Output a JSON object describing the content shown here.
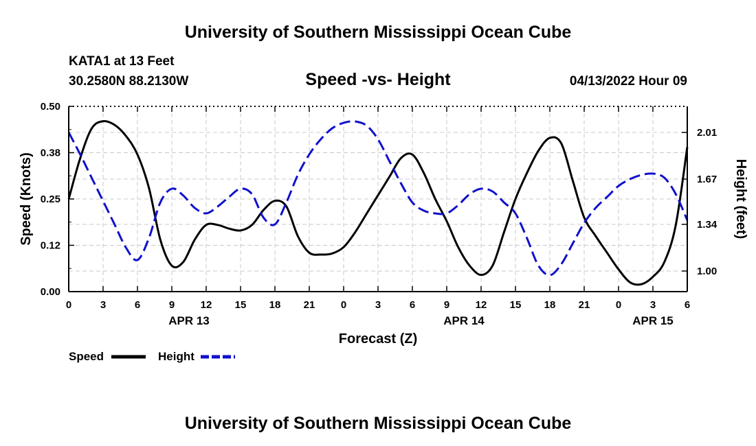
{
  "page": {
    "header_title": "University of Southern Mississippi Ocean Cube",
    "footer_title": "University of Southern Mississippi Ocean Cube"
  },
  "chart_data": {
    "type": "line",
    "title": "Speed -vs- Height",
    "station": "KATA1 at 13 Feet",
    "location": "30.2580N  88.2130W",
    "timestamp": "04/13/2022 Hour 09",
    "xlabel": "Forecast (Z)",
    "ylabel": "Speed (Knots)",
    "y2label": "Height (feet)",
    "x_range_hours": [
      0,
      54
    ],
    "x_ticks": [
      {
        "h": 0,
        "label": "0"
      },
      {
        "h": 3,
        "label": "3"
      },
      {
        "h": 6,
        "label": "6"
      },
      {
        "h": 9,
        "label": "9"
      },
      {
        "h": 12,
        "label": "12"
      },
      {
        "h": 15,
        "label": "15"
      },
      {
        "h": 18,
        "label": "18"
      },
      {
        "h": 21,
        "label": "21"
      },
      {
        "h": 24,
        "label": "0"
      },
      {
        "h": 27,
        "label": "3"
      },
      {
        "h": 30,
        "label": "6"
      },
      {
        "h": 33,
        "label": "9"
      },
      {
        "h": 36,
        "label": "12"
      },
      {
        "h": 39,
        "label": "15"
      },
      {
        "h": 42,
        "label": "18"
      },
      {
        "h": 45,
        "label": "21"
      },
      {
        "h": 48,
        "label": "0"
      },
      {
        "h": 51,
        "label": "3"
      },
      {
        "h": 54,
        "label": "6"
      }
    ],
    "date_labels": [
      {
        "h": 10.5,
        "label": "APR 13"
      },
      {
        "h": 34.5,
        "label": "APR 14"
      },
      {
        "h": 51,
        "label": "APR 15"
      }
    ],
    "ylim": [
      0,
      0.5
    ],
    "y_ticks": [
      {
        "v": 0.0,
        "label": "0.00"
      },
      {
        "v": 0.125,
        "label": "0.12"
      },
      {
        "v": 0.25,
        "label": "0.25"
      },
      {
        "v": 0.375,
        "label": "0.38"
      },
      {
        "v": 0.5,
        "label": "0.50"
      }
    ],
    "y2lim": [
      0.85,
      2.2
    ],
    "y2_ticks": [
      {
        "v": 1.0,
        "label": "1.00"
      },
      {
        "v": 1.34,
        "label": "1.34"
      },
      {
        "v": 1.67,
        "label": "1.67"
      },
      {
        "v": 2.01,
        "label": "2.01"
      }
    ],
    "series": [
      {
        "name": "Speed",
        "axis": "left",
        "color": "#000000",
        "dash": "solid",
        "x": [
          0,
          1,
          2,
          3,
          4,
          5,
          6,
          7,
          8,
          9,
          10,
          11,
          12,
          13,
          14,
          15,
          16,
          17,
          18,
          19,
          20,
          21,
          22,
          23,
          24,
          25,
          26,
          27,
          28,
          29,
          30,
          31,
          32,
          33,
          34,
          35,
          36,
          37,
          38,
          39,
          40,
          41,
          42,
          43,
          44,
          45,
          46,
          47,
          48,
          49,
          50,
          51,
          52,
          53,
          54
        ],
        "values": [
          0.25,
          0.36,
          0.44,
          0.46,
          0.45,
          0.42,
          0.37,
          0.28,
          0.14,
          0.07,
          0.08,
          0.14,
          0.18,
          0.18,
          0.17,
          0.165,
          0.18,
          0.22,
          0.245,
          0.23,
          0.15,
          0.105,
          0.1,
          0.103,
          0.12,
          0.16,
          0.21,
          0.26,
          0.31,
          0.36,
          0.37,
          0.32,
          0.25,
          0.19,
          0.12,
          0.07,
          0.045,
          0.07,
          0.16,
          0.25,
          0.32,
          0.38,
          0.415,
          0.4,
          0.3,
          0.2,
          0.15,
          0.105,
          0.06,
          0.025,
          0.02,
          0.04,
          0.08,
          0.18,
          0.39
        ]
      },
      {
        "name": "Height",
        "axis": "right",
        "color": "#1010cc",
        "dash": "dashed",
        "x": [
          0,
          1,
          2,
          3,
          4,
          5,
          6,
          7,
          8,
          9,
          10,
          11,
          12,
          13,
          14,
          15,
          16,
          17,
          18,
          19,
          20,
          21,
          22,
          23,
          24,
          25,
          26,
          27,
          28,
          29,
          30,
          31,
          32,
          33,
          34,
          35,
          36,
          37,
          38,
          39,
          40,
          41,
          42,
          43,
          44,
          45,
          46,
          47,
          48,
          49,
          50,
          51,
          52,
          53,
          54
        ],
        "values": [
          2.01,
          1.85,
          1.68,
          1.51,
          1.34,
          1.17,
          1.08,
          1.24,
          1.5,
          1.6,
          1.55,
          1.46,
          1.42,
          1.47,
          1.54,
          1.6,
          1.56,
          1.39,
          1.34,
          1.5,
          1.7,
          1.85,
          1.96,
          2.04,
          2.08,
          2.09,
          2.06,
          1.96,
          1.8,
          1.64,
          1.5,
          1.44,
          1.42,
          1.42,
          1.48,
          1.56,
          1.6,
          1.58,
          1.5,
          1.42,
          1.24,
          1.04,
          0.97,
          1.05,
          1.2,
          1.35,
          1.46,
          1.54,
          1.62,
          1.67,
          1.7,
          1.71,
          1.68,
          1.56,
          1.37
        ]
      }
    ],
    "legend": [
      {
        "label": "Speed",
        "color": "#000000",
        "dash": "solid"
      },
      {
        "label": "Height",
        "color": "#1010cc",
        "dash": "dashed"
      }
    ]
  }
}
